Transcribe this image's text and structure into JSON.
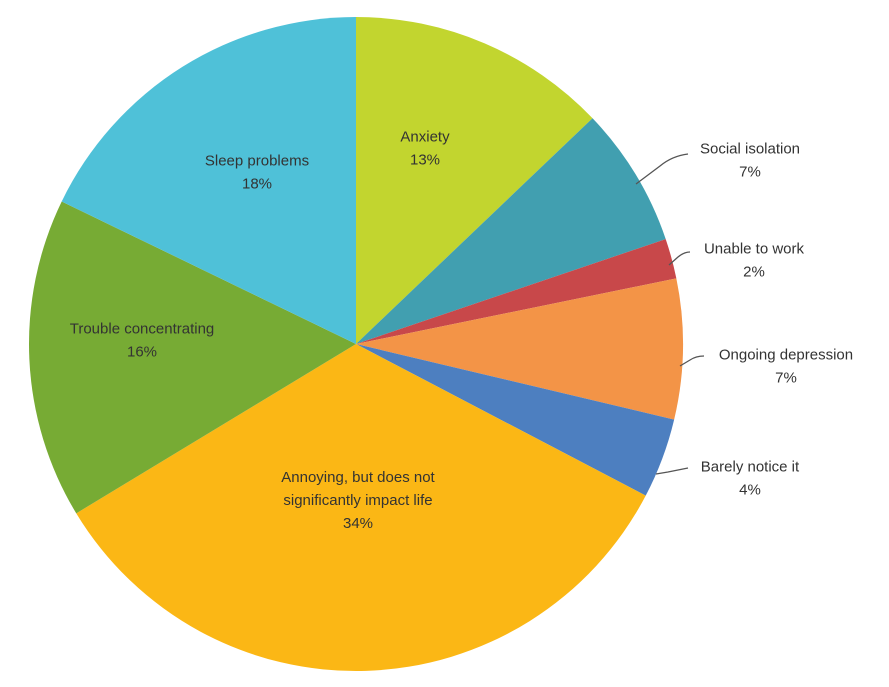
{
  "chart_data": {
    "type": "pie",
    "title": "",
    "start_angle_deg": 0,
    "direction": "clockwise",
    "slices": [
      {
        "label": "Anxiety",
        "value": 13,
        "value_label": "13%",
        "color": "#C2D52F"
      },
      {
        "label": "Social isolation",
        "value": 7,
        "value_label": "7%",
        "color": "#419FB0"
      },
      {
        "label": "Unable to work",
        "value": 2,
        "value_label": "2%",
        "color": "#C8484A"
      },
      {
        "label": "Ongoing depression",
        "value": 7,
        "value_label": "7%",
        "color": "#F39447"
      },
      {
        "label": "Barely notice it",
        "value": 4,
        "value_label": "4%",
        "color": "#4D7FC0"
      },
      {
        "label": "Annoying, but does not significantly impact life",
        "value": 34,
        "value_label": "34%",
        "color": "#FBB715",
        "label_lines": [
          "Annoying, but does not",
          "significantly impact life"
        ]
      },
      {
        "label": "Trouble concentrating",
        "value": 16,
        "value_label": "16%",
        "color": "#77AB34"
      },
      {
        "label": "Sleep problems",
        "value": 18,
        "value_label": "18%",
        "color": "#4FC1D8"
      }
    ]
  }
}
